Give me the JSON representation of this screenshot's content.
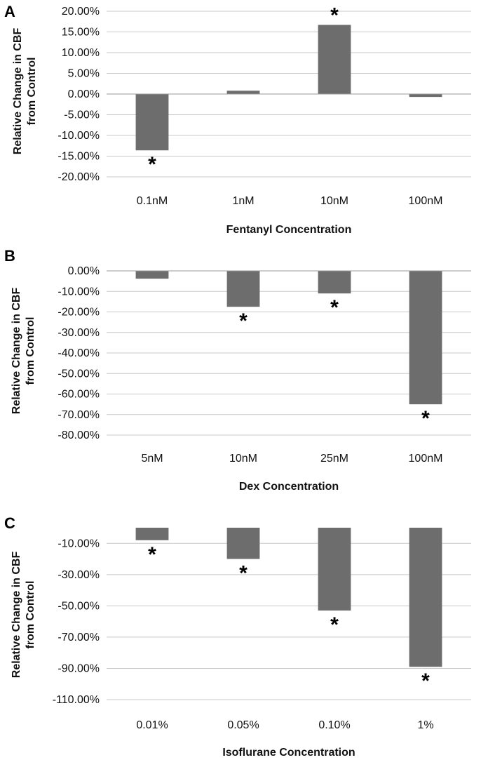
{
  "chart_data": [
    {
      "type": "bar",
      "panel": "A",
      "categories": [
        "0.1nM",
        "1nM",
        "10nM",
        "100nM"
      ],
      "values": [
        -13.6,
        0.8,
        16.7,
        -0.7
      ],
      "significant": [
        true,
        false,
        true,
        false
      ],
      "marker": "*",
      "xlabel": "Fentanyl Concentration",
      "ylabel": "Relative Change in CBF from Control",
      "ylabel_lines": [
        "Relative Change in CBF",
        "from Control"
      ],
      "ylim": [
        -20,
        20
      ],
      "yticks": [
        20,
        15,
        10,
        5,
        0,
        -5,
        -10,
        -15,
        -20
      ],
      "ytick_labels": [
        "20.00%",
        "15.00%",
        "10.00%",
        "5.00%",
        "0.00%",
        "-5.00%",
        "-10.00%",
        "-15.00%",
        "-20.00%"
      ],
      "grid": true,
      "color": "#6d6d6d"
    },
    {
      "type": "bar",
      "panel": "B",
      "categories": [
        "5nM",
        "10nM",
        "25nM",
        "100nM"
      ],
      "values": [
        -3.8,
        -17.5,
        -11,
        -65
      ],
      "significant": [
        false,
        true,
        true,
        true
      ],
      "marker": "*",
      "xlabel": "Dex Concentration",
      "ylabel": "Relative Change in CBF from Control",
      "ylabel_lines": [
        "Relative Change in CBF",
        "from Control"
      ],
      "ylim": [
        -80,
        0
      ],
      "yticks": [
        0,
        -10,
        -20,
        -30,
        -40,
        -50,
        -60,
        -70,
        -80
      ],
      "ytick_labels": [
        "0.00%",
        "-10.00%",
        "-20.00%",
        "-30.00%",
        "-40.00%",
        "-50.00%",
        "-60.00%",
        "-70.00%",
        "-80.00%"
      ],
      "grid": true,
      "color": "#6d6d6d"
    },
    {
      "type": "bar",
      "panel": "C",
      "categories": [
        "0.01%",
        "0.05%",
        "0.10%",
        "1%"
      ],
      "values": [
        -8,
        -20,
        -53,
        -89
      ],
      "significant": [
        true,
        true,
        true,
        true
      ],
      "marker": "*",
      "xlabel": "Isoflurane Concentration",
      "ylabel": "Relative Change in CBF from Control",
      "ylabel_lines": [
        "Relative Change in CBF",
        "from Control"
      ],
      "ylim": [
        -110,
        0
      ],
      "yticks": [
        -10,
        -30,
        -50,
        -70,
        -90,
        -110
      ],
      "ytick_labels": [
        "-10.00%",
        "-30.00%",
        "-50.00%",
        "-70.00%",
        "-90.00%",
        "-110.00%"
      ],
      "grid": true,
      "color": "#6d6d6d"
    }
  ]
}
